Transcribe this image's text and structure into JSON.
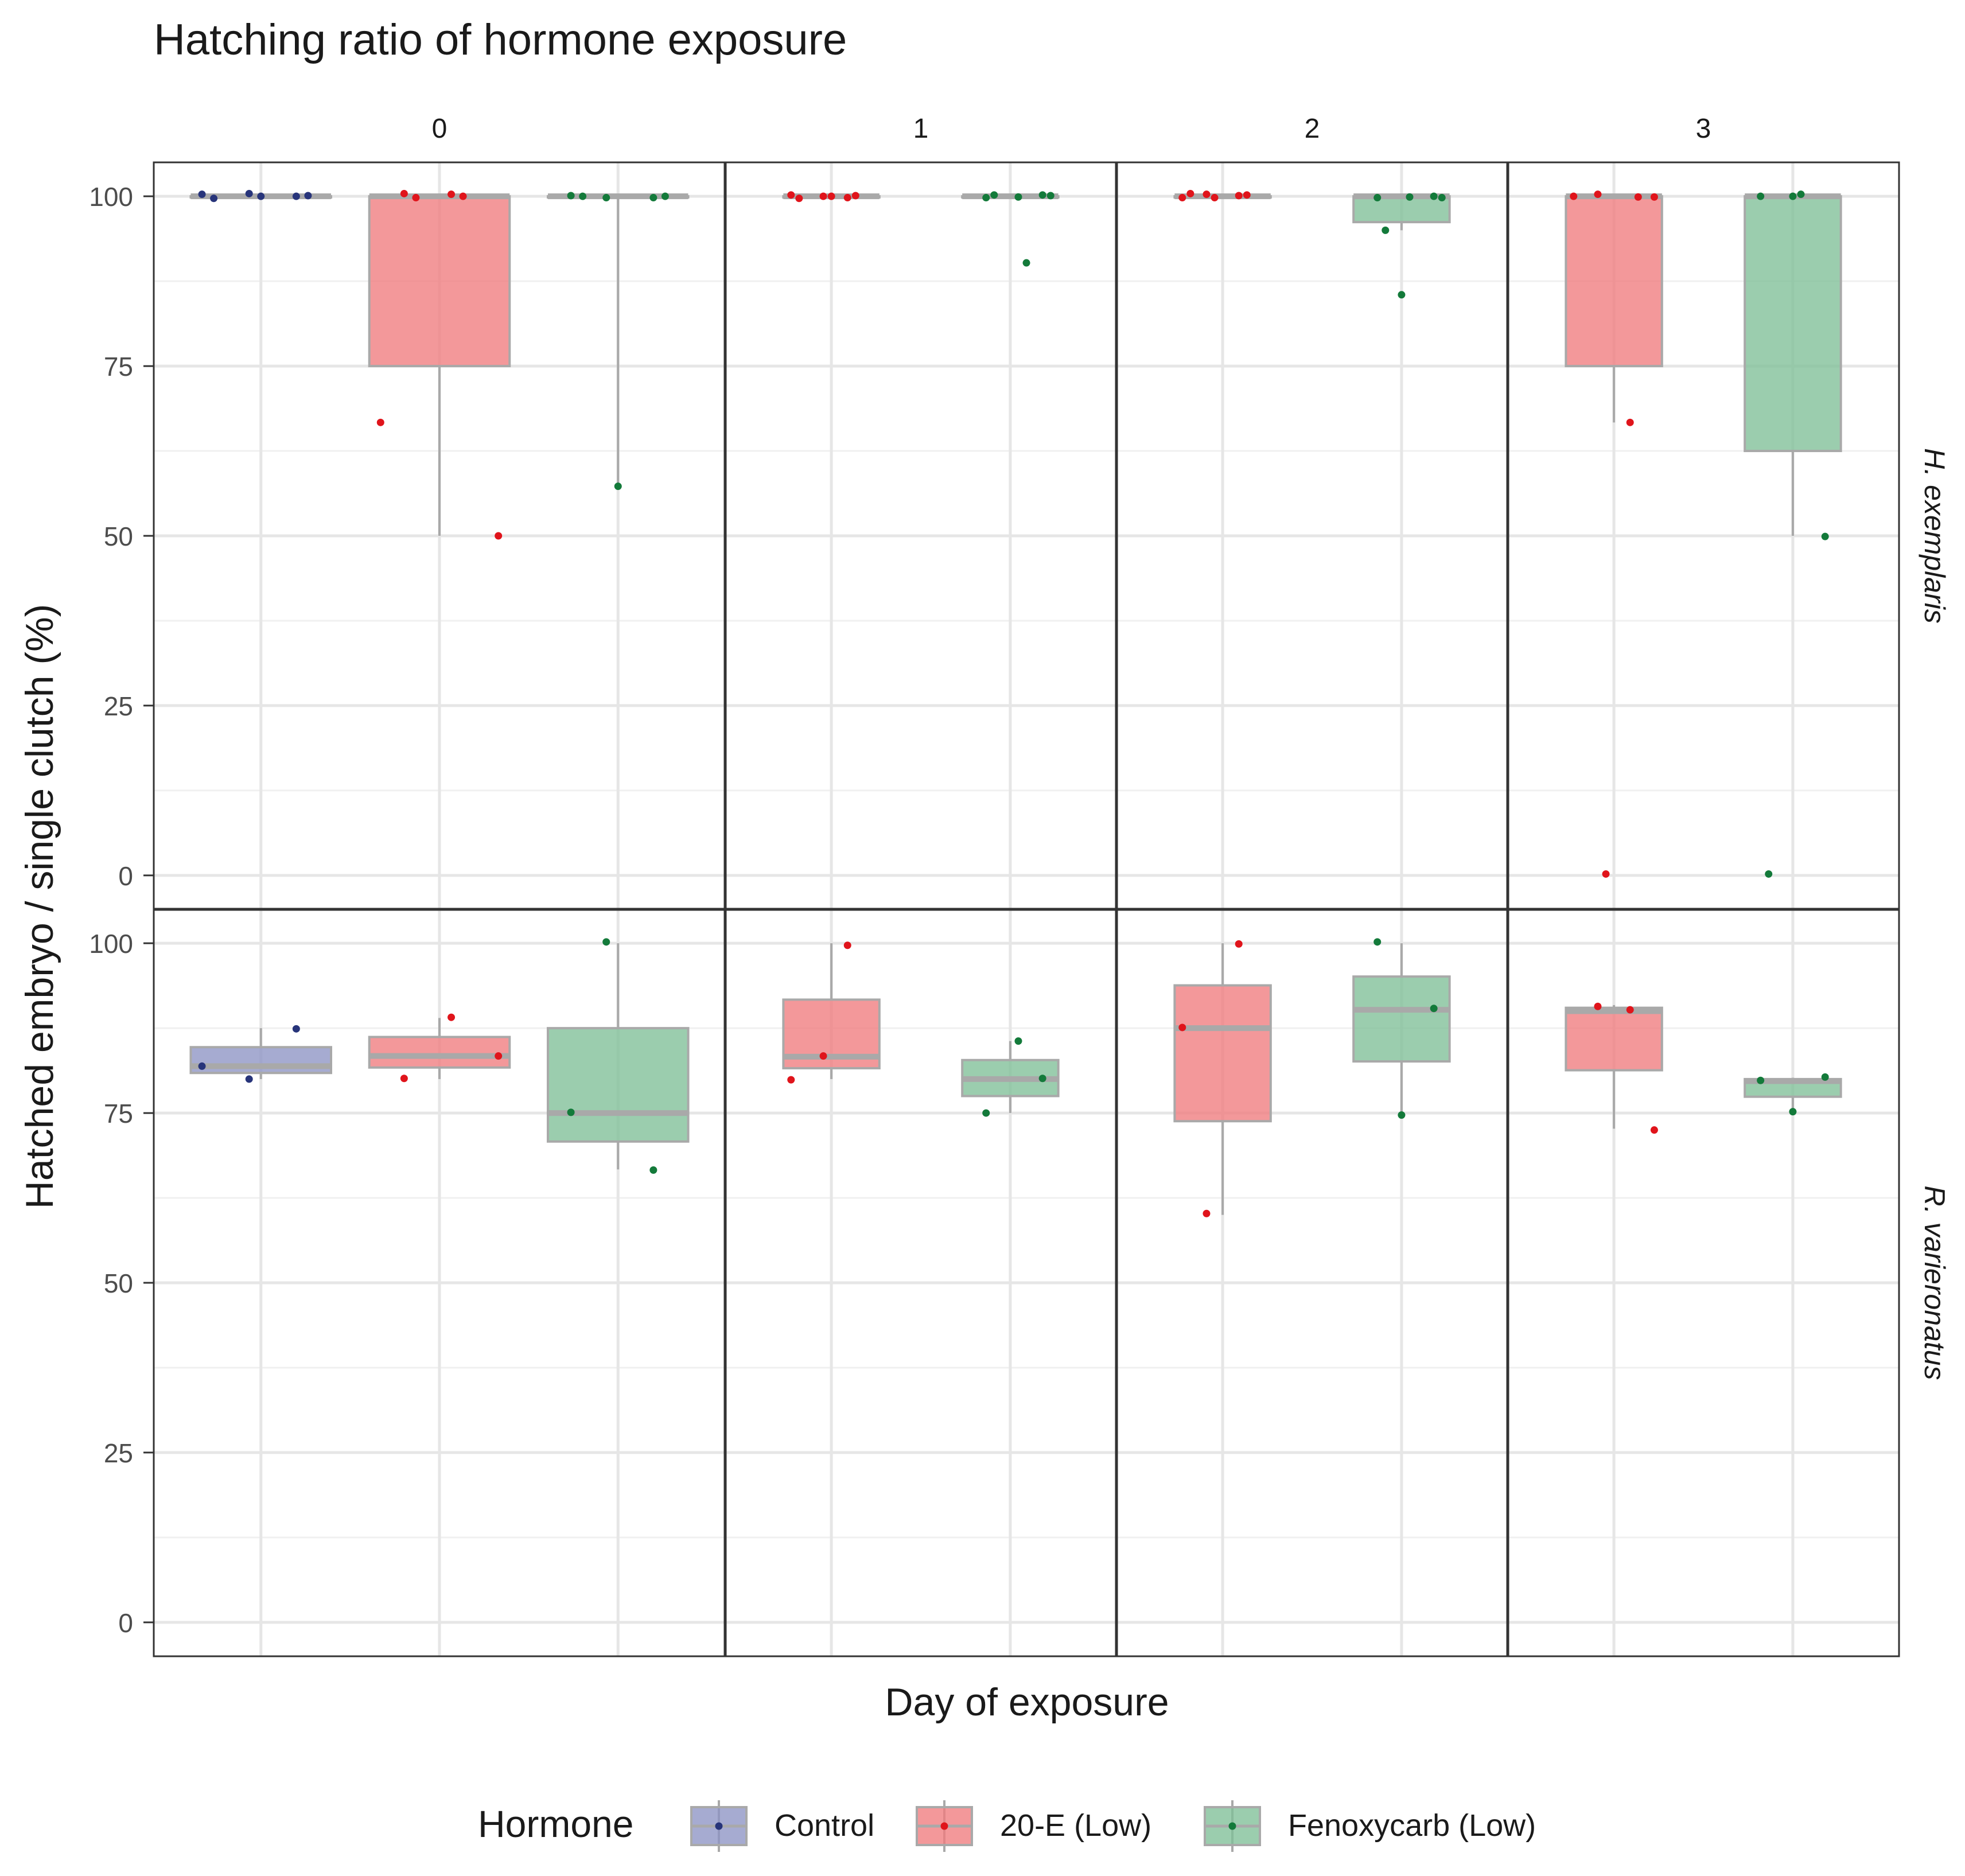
{
  "chart_data": {
    "type": "box",
    "title": "Hatching ratio of hormone exposure",
    "xlabel": "Day of exposure",
    "ylabel": "Hatched embryo  / single clutch (%)",
    "ylim": [
      -5,
      105
    ],
    "yticks": [
      0,
      25,
      50,
      75,
      100
    ],
    "grid": true,
    "legend": {
      "title": "Hormone",
      "position": "bottom",
      "entries": [
        "Control",
        "20-E (Low)",
        "Fenoxycarb (Low)"
      ]
    },
    "colors": {
      "Control": {
        "fill": "#8d93c4",
        "point": "#27347a"
      },
      "20-E (Low)": {
        "fill": "#ef7b7e",
        "point": "#e0141b"
      },
      "Fenoxycarb (Low)": {
        "fill": "#7fbf97",
        "point": "#137a3a"
      }
    },
    "columns": [
      "0",
      "1",
      "2",
      "3"
    ],
    "rows": [
      "H. exemplaris",
      "R. varieronatus"
    ],
    "panels": [
      {
        "row": "H. exemplaris",
        "day": "0",
        "boxes": [
          {
            "group": "Control",
            "slot": 0,
            "min": 100,
            "q1": 100,
            "median": 100,
            "q3": 100,
            "max": 100,
            "points": [
              100.3,
              100.4,
              100,
              99.7,
              100,
              100.1
            ]
          },
          {
            "group": "20-E (Low)",
            "slot": 1,
            "min": 50,
            "q1": 75,
            "median": 100,
            "q3": 100,
            "max": 100,
            "points": [
              100.4,
              100.3,
              50,
              99.8,
              100,
              66.7
            ]
          },
          {
            "group": "Fenoxycarb (Low)",
            "slot": 2,
            "min": 57.1,
            "q1": 100,
            "median": 100,
            "q3": 100,
            "max": 100,
            "points": [
              99.8,
              99.8,
              100.1,
              57.3,
              100,
              100
            ]
          }
        ]
      },
      {
        "row": "H. exemplaris",
        "day": "1",
        "boxes": [
          {
            "group": "20-E (Low)",
            "slot": 0,
            "min": 100,
            "q1": 100,
            "median": 100,
            "q3": 100,
            "max": 100,
            "points": [
              99.8,
              100.2,
              100,
              100.1,
              99.7,
              100
            ]
          },
          {
            "group": "Fenoxycarb (Low)",
            "slot": 1,
            "min": 100,
            "q1": 100,
            "median": 100,
            "q3": 100,
            "max": 100,
            "points": [
              100.2,
              99.8,
              99.9,
              100.1,
              100.2,
              90.2
            ]
          }
        ]
      },
      {
        "row": "H. exemplaris",
        "day": "2",
        "boxes": [
          {
            "group": "20-E (Low)",
            "slot": 0,
            "min": 100,
            "q1": 100,
            "median": 100,
            "q3": 100,
            "max": 100,
            "points": [
              100.3,
              100.1,
              99.8,
              99.8,
              100.2,
              100.4
            ]
          },
          {
            "group": "Fenoxycarb (Low)",
            "slot": 1,
            "min": 95,
            "q1": 96.2,
            "median": 100,
            "q3": 100,
            "max": 100,
            "points": [
              85.5,
              100,
              99.8,
              99.9,
              99.8,
              95
            ]
          }
        ]
      },
      {
        "row": "H. exemplaris",
        "day": "3",
        "boxes": [
          {
            "group": "20-E (Low)",
            "slot": 0,
            "min": 66.7,
            "q1": 75,
            "median": 100,
            "q3": 100,
            "max": 100,
            "points": [
              99.9,
              100.3,
              66.7,
              100,
              0.2,
              99.9
            ]
          },
          {
            "group": "Fenoxycarb (Low)",
            "slot": 1,
            "min": 50,
            "q1": 62.5,
            "median": 100,
            "q3": 100,
            "max": 100,
            "points": [
              100,
              100,
              49.9,
              0.2,
              100.3
            ]
          }
        ]
      },
      {
        "row": "R. varieronatus",
        "day": "0",
        "boxes": [
          {
            "group": "Control",
            "slot": 0,
            "min": 80,
            "q1": 80.9,
            "median": 81.9,
            "q3": 84.7,
            "max": 87.5,
            "points": [
              81.9,
              80,
              87.4
            ]
          },
          {
            "group": "20-E (Low)",
            "slot": 1,
            "min": 80,
            "q1": 81.7,
            "median": 83.4,
            "q3": 86.2,
            "max": 89,
            "points": [
              80.1,
              89.1,
              83.4
            ]
          },
          {
            "group": "Fenoxycarb (Low)",
            "slot": 2,
            "min": 66.7,
            "q1": 70.8,
            "median": 75,
            "q3": 87.5,
            "max": 100,
            "points": [
              100.2,
              66.6,
              75.1
            ]
          }
        ]
      },
      {
        "row": "R. varieronatus",
        "day": "1",
        "boxes": [
          {
            "group": "20-E (Low)",
            "slot": 0,
            "min": 80,
            "q1": 81.6,
            "median": 83.3,
            "q3": 91.7,
            "max": 100,
            "points": [
              99.7,
              79.9,
              83.4
            ]
          },
          {
            "group": "Fenoxycarb (Low)",
            "slot": 1,
            "min": 75,
            "q1": 77.5,
            "median": 80,
            "q3": 82.8,
            "max": 85.6,
            "points": [
              80.1,
              75,
              85.6
            ]
          }
        ]
      },
      {
        "row": "R. varieronatus",
        "day": "2",
        "boxes": [
          {
            "group": "20-E (Low)",
            "slot": 0,
            "min": 60,
            "q1": 73.8,
            "median": 87.5,
            "q3": 93.8,
            "max": 100,
            "points": [
              60.2,
              99.9,
              87.6
            ]
          },
          {
            "group": "Fenoxycarb (Low)",
            "slot": 1,
            "min": 75,
            "q1": 82.6,
            "median": 90.2,
            "q3": 95.1,
            "max": 100,
            "points": [
              74.7,
              90.4,
              100.2
            ]
          }
        ]
      },
      {
        "row": "R. varieronatus",
        "day": "3",
        "boxes": [
          {
            "group": "20-E (Low)",
            "slot": 0,
            "min": 72.7,
            "q1": 81.3,
            "median": 90,
            "q3": 90.5,
            "max": 90.9,
            "points": [
              72.5,
              90.7,
              90.2
            ]
          },
          {
            "group": "Fenoxycarb (Low)",
            "slot": 1,
            "min": 75,
            "q1": 77.4,
            "median": 79.7,
            "q3": 80,
            "max": 80.2,
            "points": [
              79.8,
              75.2,
              80.3
            ]
          }
        ]
      }
    ]
  }
}
